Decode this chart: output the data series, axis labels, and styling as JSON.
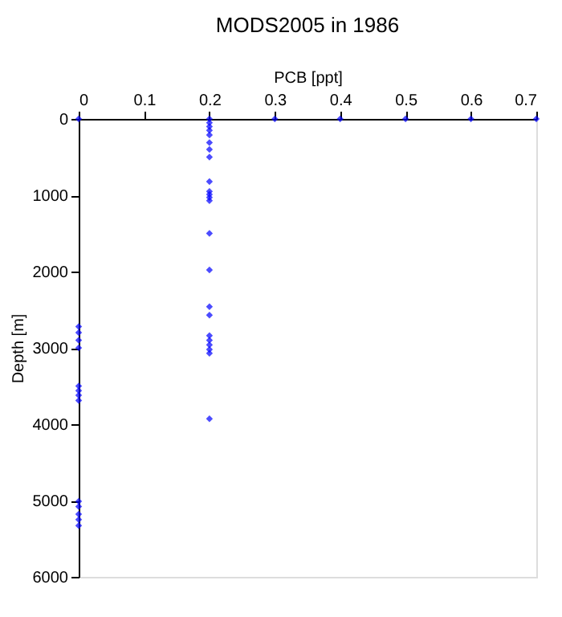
{
  "chart_data": {
    "type": "scatter",
    "title": "MODS2005 in 1986",
    "xlabel": "PCB [ppt]",
    "ylabel": "Depth [m]",
    "series": [
      {
        "color": "#0000ff",
        "x": [
          0,
          0.3,
          0.4,
          0.5,
          0.6,
          0.7,
          0.2,
          0.2,
          0.2,
          0.2,
          0.2,
          0.2,
          0.2,
          0.2,
          0.2,
          0.2,
          0.2,
          0.2,
          0.2,
          0.2,
          0.2,
          0.2,
          0.2,
          0.2,
          0.2,
          0.2,
          0.2,
          0.2,
          0.2,
          0,
          0,
          0,
          0,
          0,
          0,
          0,
          0,
          0,
          0,
          0,
          0,
          0
        ],
        "values": [
          0,
          0,
          0,
          0,
          0,
          0,
          0,
          50,
          100,
          150,
          210,
          310,
          400,
          500,
          820,
          950,
          990,
          1030,
          1070,
          1500,
          1980,
          2460,
          2570,
          2840,
          2900,
          2960,
          3020,
          3070,
          3930,
          2720,
          2800,
          2900,
          3000,
          3500,
          3560,
          3620,
          3690,
          5010,
          5080,
          5180,
          5250,
          5330
        ]
      }
    ],
    "xlim": [
      0,
      0.7
    ],
    "xticks": [
      0,
      0.1,
      0.2,
      0.3,
      0.4,
      0.5,
      0.6,
      0.7
    ],
    "ylim": [
      6000,
      0
    ],
    "yticks": [
      0,
      1000,
      2000,
      3000,
      4000,
      5000,
      6000
    ],
    "grid": false,
    "marker": "diamond"
  }
}
